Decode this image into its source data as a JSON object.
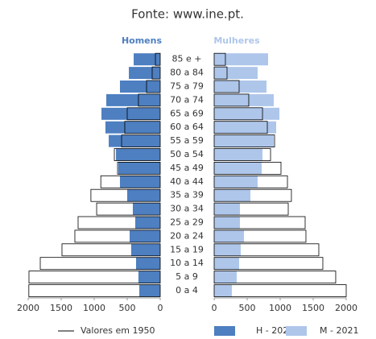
{
  "chart_data": {
    "type": "pyramid",
    "title": "Fonte: www.ine.pt.",
    "left_label": "Homens",
    "right_label": "Mulheres",
    "categories": [
      "0 a 4",
      "5 a 9",
      "10 a 14",
      "15 a 19",
      "20 a 24",
      "25 a 29",
      "30 a 34",
      "35 a 39",
      "40 a 44",
      "45 a 49",
      "50 a 54",
      "55 a 59",
      "60 a 64",
      "65 a 69",
      "70 a 74",
      "75 a 79",
      "80 a 84",
      "85 e +"
    ],
    "series": [
      {
        "name": "H - 2021",
        "side": "left",
        "color": "#4d7fc1",
        "values": [
          317,
          330,
          366,
          440,
          463,
          378,
          415,
          500,
          610,
          634,
          670,
          780,
          830,
          890,
          817,
          610,
          475,
          402
        ]
      },
      {
        "name": "M - 2021",
        "side": "right",
        "color": "#aec6ea",
        "values": [
          268,
          341,
          378,
          402,
          451,
          390,
          390,
          549,
          658,
          720,
          732,
          902,
          939,
          988,
          902,
          793,
          658,
          817
        ]
      }
    ],
    "outline": {
      "name": "Valores em 1950",
      "color": "#000000",
      "left": [
        1990,
        1988,
        1817,
        1488,
        1293,
        1244,
        963,
        1050,
        900,
        646,
        695,
        585,
        537,
        500,
        330,
        207,
        122,
        73
      ],
      "right": [
        2000,
        1841,
        1646,
        1585,
        1390,
        1378,
        1122,
        1170,
        1110,
        1012,
        854,
        915,
        805,
        732,
        524,
        378,
        195,
        170
      ]
    },
    "xlim": [
      0,
      2000
    ],
    "xticks": [
      0,
      500,
      1000,
      1500,
      2000
    ]
  }
}
